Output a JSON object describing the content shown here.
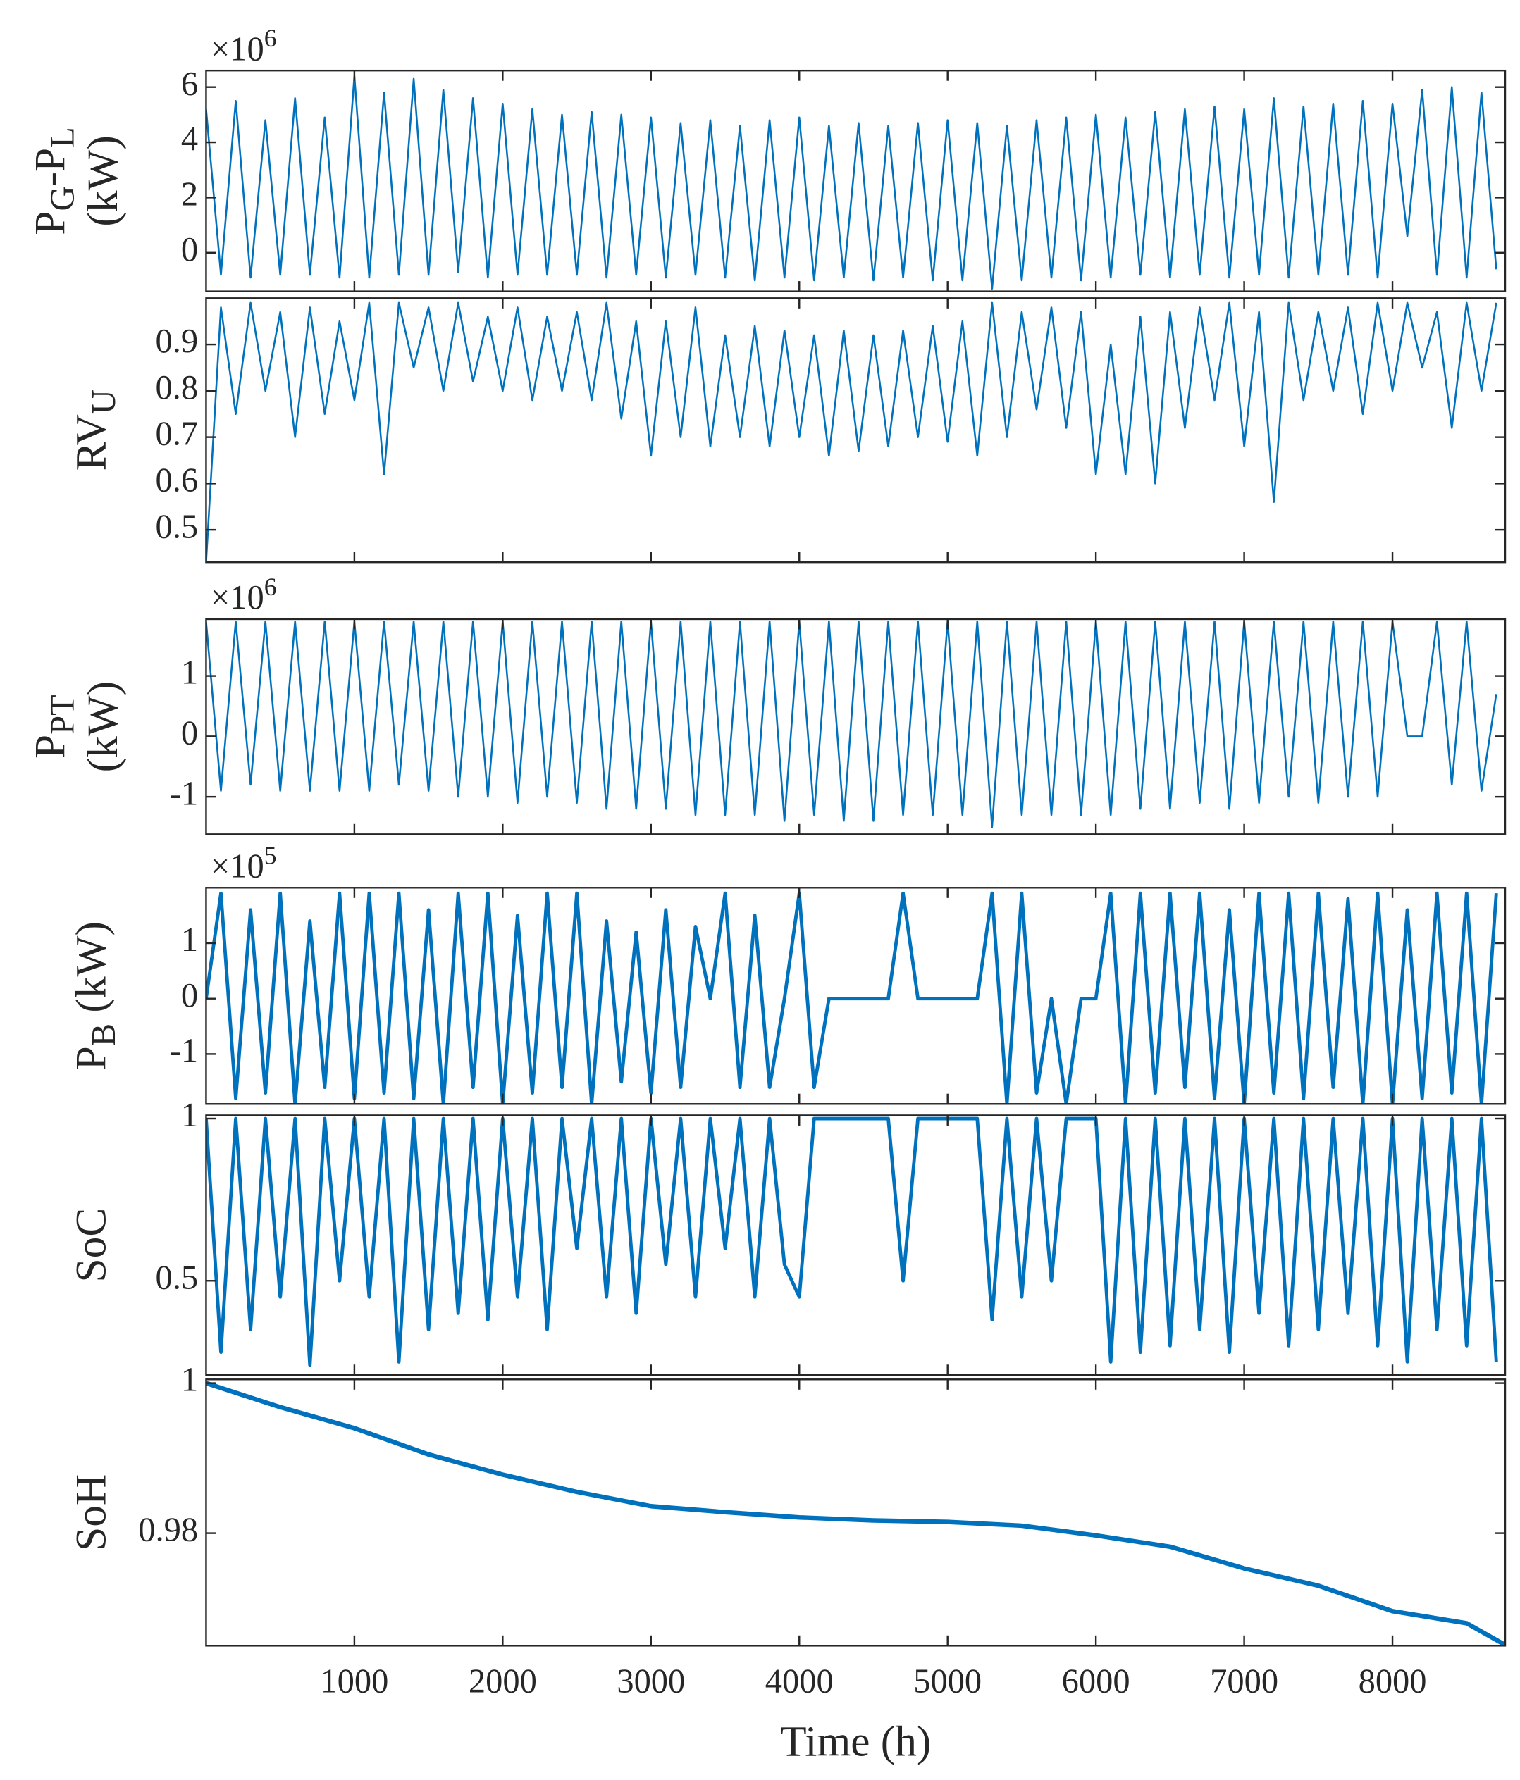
{
  "chart_data": [
    {
      "type": "line",
      "color": "#0072bd",
      "multiplier": {
        "base": "×10",
        "exp": "6"
      },
      "ylabel": [
        [
          "P",
          "G",
          "-P",
          "L"
        ],
        [
          "(kW)"
        ]
      ],
      "xlim": [
        0,
        8760
      ],
      "xticks": [
        1000,
        2000,
        3000,
        4000,
        5000,
        6000,
        7000,
        8000
      ],
      "ylim": [
        -1.4,
        6.6
      ],
      "yticks": [
        0,
        2,
        4,
        6
      ],
      "x": [
        0,
        100,
        200,
        300,
        400,
        500,
        600,
        700,
        800,
        900,
        1000,
        1100,
        1200,
        1300,
        1400,
        1500,
        1600,
        1700,
        1800,
        1900,
        2000,
        2100,
        2200,
        2300,
        2400,
        2500,
        2600,
        2700,
        2800,
        2900,
        3000,
        3100,
        3200,
        3300,
        3400,
        3500,
        3600,
        3700,
        3800,
        3900,
        4000,
        4100,
        4200,
        4300,
        4400,
        4500,
        4600,
        4700,
        4800,
        4900,
        5000,
        5100,
        5200,
        5300,
        5400,
        5500,
        5600,
        5700,
        5800,
        5900,
        6000,
        6100,
        6200,
        6300,
        6400,
        6500,
        6600,
        6700,
        6800,
        6900,
        7000,
        7100,
        7200,
        7300,
        7400,
        7500,
        7600,
        7700,
        7800,
        7900,
        8000,
        8100,
        8200,
        8300,
        8400,
        8500,
        8600,
        8700
      ],
      "values": [
        5.2,
        -0.8,
        5.5,
        -0.9,
        4.8,
        -0.8,
        5.6,
        -0.8,
        4.9,
        -0.9,
        6.4,
        -0.9,
        5.8,
        -0.8,
        6.3,
        -0.8,
        5.9,
        -0.7,
        5.6,
        -0.9,
        5.4,
        -0.8,
        5.2,
        -0.8,
        5.0,
        -0.8,
        5.1,
        -0.9,
        5.0,
        -0.8,
        4.9,
        -0.9,
        4.7,
        -0.8,
        4.8,
        -0.9,
        4.6,
        -1.0,
        4.8,
        -0.9,
        4.9,
        -1.0,
        4.6,
        -0.9,
        4.7,
        -1.0,
        4.6,
        -0.9,
        4.7,
        -1.0,
        4.8,
        -1.0,
        4.7,
        -1.3,
        4.6,
        -1.0,
        4.8,
        -0.9,
        4.9,
        -1.0,
        5.0,
        -0.9,
        4.9,
        -0.8,
        5.1,
        -0.9,
        5.2,
        -0.8,
        5.3,
        -0.9,
        5.2,
        -0.8,
        5.6,
        -0.9,
        5.3,
        -0.8,
        5.4,
        -0.8,
        5.5,
        -0.9,
        5.4,
        0.6,
        5.9,
        -0.8,
        6.0,
        -0.9,
        5.8,
        -0.6
      ]
    },
    {
      "type": "line",
      "color": "#0072bd",
      "ylabel": [
        [
          "RV",
          "U"
        ]
      ],
      "xlim": [
        0,
        8760
      ],
      "xticks": [
        1000,
        2000,
        3000,
        4000,
        5000,
        6000,
        7000,
        8000
      ],
      "ylim": [
        0.43,
        1.0
      ],
      "yticks": [
        0.5,
        0.6,
        0.7,
        0.8,
        0.9
      ],
      "x": [
        0,
        100,
        200,
        300,
        400,
        500,
        600,
        700,
        800,
        900,
        1000,
        1100,
        1200,
        1300,
        1400,
        1500,
        1600,
        1700,
        1800,
        1900,
        2000,
        2100,
        2200,
        2300,
        2400,
        2500,
        2600,
        2700,
        2800,
        2900,
        3000,
        3100,
        3200,
        3300,
        3400,
        3500,
        3600,
        3700,
        3800,
        3900,
        4000,
        4100,
        4200,
        4300,
        4400,
        4500,
        4600,
        4700,
        4800,
        4900,
        5000,
        5100,
        5200,
        5300,
        5400,
        5500,
        5600,
        5700,
        5800,
        5900,
        6000,
        6100,
        6200,
        6300,
        6400,
        6500,
        6600,
        6700,
        6800,
        6900,
        7000,
        7100,
        7200,
        7300,
        7400,
        7500,
        7600,
        7700,
        7800,
        7900,
        8000,
        8100,
        8200,
        8300,
        8400,
        8500,
        8600,
        8700
      ],
      "values": [
        0.43,
        0.98,
        0.75,
        0.99,
        0.8,
        0.97,
        0.7,
        0.98,
        0.75,
        0.95,
        0.78,
        0.99,
        0.62,
        0.99,
        0.85,
        0.98,
        0.8,
        0.99,
        0.82,
        0.96,
        0.8,
        0.98,
        0.78,
        0.96,
        0.8,
        0.97,
        0.78,
        0.99,
        0.74,
        0.95,
        0.66,
        0.95,
        0.7,
        0.98,
        0.68,
        0.92,
        0.7,
        0.94,
        0.68,
        0.93,
        0.7,
        0.92,
        0.66,
        0.93,
        0.67,
        0.92,
        0.68,
        0.93,
        0.7,
        0.94,
        0.69,
        0.95,
        0.66,
        0.99,
        0.7,
        0.97,
        0.76,
        0.98,
        0.72,
        0.97,
        0.62,
        0.9,
        0.62,
        0.96,
        0.6,
        0.97,
        0.72,
        0.98,
        0.78,
        0.99,
        0.68,
        0.97,
        0.56,
        0.99,
        0.78,
        0.97,
        0.8,
        0.98,
        0.75,
        0.99,
        0.8,
        0.99,
        0.85,
        0.97,
        0.72,
        0.99,
        0.8,
        0.99
      ]
    },
    {
      "type": "line",
      "color": "#0072bd",
      "multiplier": {
        "base": "×10",
        "exp": "6"
      },
      "ylabel": [
        [
          "P",
          "PT"
        ],
        [
          "(kW)"
        ]
      ],
      "xlim": [
        0,
        8760
      ],
      "xticks": [
        1000,
        2000,
        3000,
        4000,
        5000,
        6000,
        7000,
        8000
      ],
      "ylim": [
        -1.62,
        1.94
      ],
      "yticks": [
        -1,
        0,
        1
      ],
      "x": [
        0,
        100,
        200,
        300,
        400,
        500,
        600,
        700,
        800,
        900,
        1000,
        1100,
        1200,
        1300,
        1400,
        1500,
        1600,
        1700,
        1800,
        1900,
        2000,
        2100,
        2200,
        2300,
        2400,
        2500,
        2600,
        2700,
        2800,
        2900,
        3000,
        3100,
        3200,
        3300,
        3400,
        3500,
        3600,
        3700,
        3800,
        3900,
        4000,
        4100,
        4200,
        4300,
        4400,
        4500,
        4600,
        4700,
        4800,
        4900,
        5000,
        5100,
        5200,
        5300,
        5400,
        5500,
        5600,
        5700,
        5800,
        5900,
        6000,
        6100,
        6200,
        6300,
        6400,
        6500,
        6600,
        6700,
        6800,
        6900,
        7000,
        7100,
        7200,
        7300,
        7400,
        7500,
        7600,
        7700,
        7800,
        7900,
        8000,
        8100,
        8200,
        8300,
        8400,
        8500,
        8600,
        8700
      ],
      "values": [
        1.9,
        -0.9,
        1.9,
        -0.8,
        1.9,
        -0.9,
        1.9,
        -0.9,
        1.9,
        -0.9,
        1.9,
        -0.9,
        1.9,
        -0.8,
        1.9,
        -0.9,
        1.9,
        -1.0,
        1.9,
        -1.0,
        1.9,
        -1.1,
        1.9,
        -1.0,
        1.9,
        -1.1,
        1.9,
        -1.2,
        1.9,
        -1.2,
        1.9,
        -1.2,
        1.9,
        -1.3,
        1.9,
        -1.3,
        1.9,
        -1.3,
        1.9,
        -1.4,
        1.9,
        -1.3,
        1.9,
        -1.4,
        1.9,
        -1.4,
        1.9,
        -1.3,
        1.9,
        -1.3,
        1.9,
        -1.3,
        1.9,
        -1.5,
        1.9,
        -1.3,
        1.9,
        -1.3,
        1.9,
        -1.3,
        1.9,
        -1.3,
        1.9,
        -1.2,
        1.9,
        -1.2,
        1.9,
        -1.1,
        1.9,
        -1.2,
        1.9,
        -1.1,
        1.9,
        -1.0,
        1.9,
        -1.1,
        1.9,
        -1.0,
        1.9,
        -1.0,
        1.9,
        0,
        0,
        1.9,
        -0.8,
        1.9,
        -0.9,
        0.7
      ]
    },
    {
      "type": "line",
      "color": "#0072bd",
      "multiplier": {
        "base": "×10",
        "exp": "5"
      },
      "ylabel": [
        [
          "P",
          "B",
          " (kW)"
        ]
      ],
      "xlim": [
        0,
        8760
      ],
      "xticks": [
        1000,
        2000,
        3000,
        4000,
        5000,
        6000,
        7000,
        8000
      ],
      "ylim": [
        -1.9,
        2.0
      ],
      "yticks": [
        -1,
        0,
        1
      ],
      "x": [
        0,
        100,
        200,
        300,
        400,
        500,
        600,
        700,
        800,
        900,
        1000,
        1100,
        1200,
        1300,
        1400,
        1500,
        1600,
        1700,
        1800,
        1900,
        2000,
        2100,
        2200,
        2300,
        2400,
        2500,
        2600,
        2700,
        2800,
        2900,
        3000,
        3100,
        3200,
        3300,
        3400,
        3500,
        3600,
        3700,
        3800,
        3900,
        4000,
        4100,
        4200,
        4300,
        4400,
        4500,
        4600,
        4700,
        4800,
        4900,
        5000,
        5100,
        5200,
        5300,
        5400,
        5500,
        5600,
        5700,
        5800,
        5900,
        6000,
        6100,
        6200,
        6300,
        6400,
        6500,
        6600,
        6700,
        6800,
        6900,
        7000,
        7100,
        7200,
        7300,
        7400,
        7500,
        7600,
        7700,
        7800,
        7900,
        8000,
        8100,
        8200,
        8300,
        8400,
        8500,
        8600,
        8700
      ],
      "values": [
        0,
        1.9,
        -1.8,
        1.6,
        -1.7,
        1.9,
        -1.9,
        1.4,
        -1.6,
        1.9,
        -1.8,
        1.9,
        -1.7,
        1.9,
        -1.8,
        1.6,
        -1.9,
        1.9,
        -1.6,
        1.9,
        -1.9,
        1.5,
        -1.7,
        1.9,
        -1.6,
        1.9,
        -1.9,
        1.4,
        -1.5,
        1.2,
        -1.7,
        1.6,
        -1.6,
        1.3,
        0,
        1.9,
        -1.6,
        1.5,
        -1.6,
        0,
        1.9,
        -1.6,
        0,
        0,
        0,
        0,
        0,
        1.9,
        0,
        0,
        0,
        0,
        0,
        1.9,
        -1.9,
        1.9,
        -1.7,
        0,
        -1.9,
        0,
        0,
        1.9,
        -1.9,
        1.9,
        -1.7,
        1.9,
        -1.6,
        1.9,
        -1.8,
        1.6,
        -1.9,
        1.9,
        -1.7,
        1.9,
        -1.8,
        1.9,
        -1.6,
        1.8,
        -1.9,
        1.9,
        -1.9,
        1.6,
        -1.8,
        1.9,
        -1.7,
        1.9,
        -1.9,
        1.9
      ]
    },
    {
      "type": "line",
      "color": "#0072bd",
      "ylabel": [
        [
          "SoC"
        ]
      ],
      "xlim": [
        0,
        8760
      ],
      "xticks": [
        1000,
        2000,
        3000,
        4000,
        5000,
        6000,
        7000,
        8000
      ],
      "ylim": [
        0.21,
        1.01
      ],
      "yticks": [
        0.5,
        1
      ],
      "x": [
        0,
        100,
        200,
        300,
        400,
        500,
        600,
        700,
        800,
        900,
        1000,
        1100,
        1200,
        1300,
        1400,
        1500,
        1600,
        1700,
        1800,
        1900,
        2000,
        2100,
        2200,
        2300,
        2400,
        2500,
        2600,
        2700,
        2800,
        2900,
        3000,
        3100,
        3200,
        3300,
        3400,
        3500,
        3600,
        3700,
        3800,
        3900,
        4000,
        4100,
        4200,
        4300,
        4400,
        4500,
        4600,
        4700,
        4800,
        4900,
        5000,
        5100,
        5200,
        5300,
        5400,
        5500,
        5600,
        5700,
        5800,
        5900,
        6000,
        6100,
        6200,
        6300,
        6400,
        6500,
        6600,
        6700,
        6800,
        6900,
        7000,
        7100,
        7200,
        7300,
        7400,
        7500,
        7600,
        7700,
        7800,
        7900,
        8000,
        8100,
        8200,
        8300,
        8400,
        8500,
        8600,
        8700
      ],
      "values": [
        1,
        0.28,
        1,
        0.35,
        1,
        0.45,
        1,
        0.24,
        1,
        0.5,
        1,
        0.45,
        1,
        0.25,
        1,
        0.35,
        1,
        0.4,
        1,
        0.38,
        1,
        0.45,
        1,
        0.35,
        1,
        0.6,
        1,
        0.45,
        1,
        0.4,
        1,
        0.55,
        1,
        0.45,
        1,
        0.6,
        1,
        0.45,
        1,
        0.55,
        0.45,
        1,
        1,
        1,
        1,
        1,
        1,
        0.5,
        1,
        1,
        1,
        1,
        1,
        0.38,
        1,
        0.45,
        1,
        0.5,
        1,
        1,
        1,
        0.25,
        1,
        0.28,
        1,
        0.3,
        1,
        0.35,
        1,
        0.28,
        1,
        0.4,
        1,
        0.3,
        1,
        0.35,
        1,
        0.4,
        1,
        0.3,
        1,
        0.25,
        1,
        0.35,
        1,
        0.3,
        1,
        0.25
      ]
    },
    {
      "type": "line",
      "color": "#0072bd",
      "ylabel": [
        [
          "SoH"
        ]
      ],
      "xlabel": "Time (h)",
      "xlim": [
        0,
        8760
      ],
      "xticks": [
        1000,
        2000,
        3000,
        4000,
        5000,
        6000,
        7000,
        8000
      ],
      "ylim": [
        0.965,
        1.0005
      ],
      "yticks": [
        0.98,
        1
      ],
      "x": [
        0,
        500,
        1000,
        1500,
        2000,
        2500,
        3000,
        3500,
        4000,
        4500,
        5000,
        5500,
        6000,
        6500,
        7000,
        7500,
        8000,
        8500,
        8760
      ],
      "values": [
        1.0,
        0.9968,
        0.994,
        0.9905,
        0.9878,
        0.9855,
        0.9836,
        0.9828,
        0.9821,
        0.9817,
        0.9815,
        0.981,
        0.9797,
        0.9782,
        0.9753,
        0.973,
        0.9696,
        0.968,
        0.9651
      ]
    }
  ]
}
